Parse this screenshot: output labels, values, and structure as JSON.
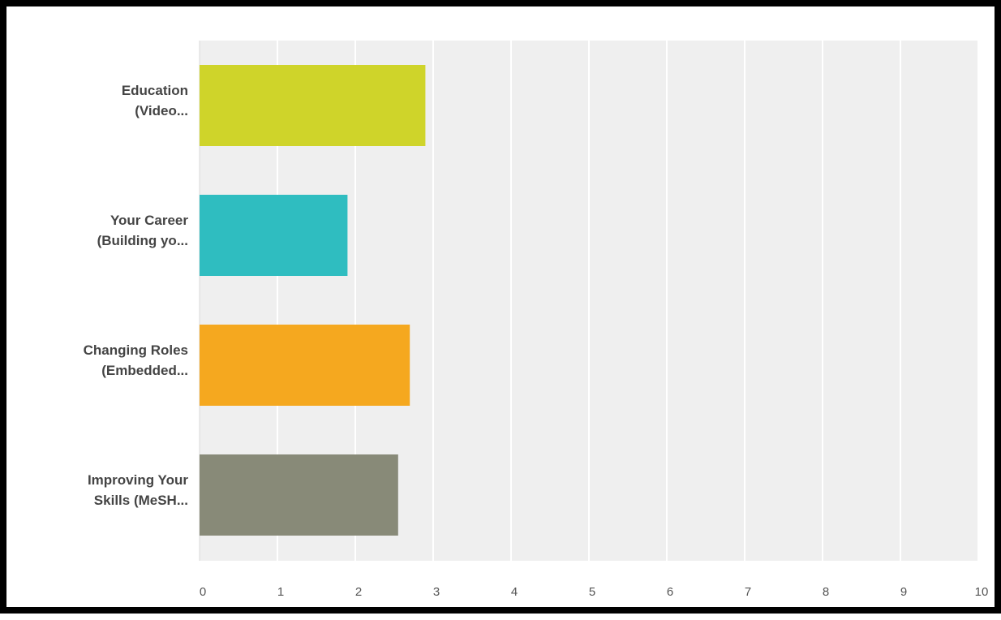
{
  "chart_data": {
    "type": "bar",
    "orientation": "horizontal",
    "categories": [
      [
        "Education",
        "(Video..."
      ],
      [
        "Your Career",
        "(Building yo..."
      ],
      [
        "Changing Roles",
        "(Embedded..."
      ],
      [
        "Improving Your",
        "Skills (MeSH..."
      ]
    ],
    "values": [
      2.9,
      1.9,
      2.7,
      2.55
    ],
    "colors": [
      "#cfd42a",
      "#2fbdc0",
      "#f5a81f",
      "#888a78"
    ],
    "xlim": [
      0,
      10
    ],
    "xticks": [
      "0",
      "1",
      "2",
      "3",
      "4",
      "5",
      "6",
      "7",
      "8",
      "9",
      "10"
    ],
    "grid": true,
    "background": "#efefef",
    "title": "",
    "xlabel": "",
    "ylabel": ""
  }
}
